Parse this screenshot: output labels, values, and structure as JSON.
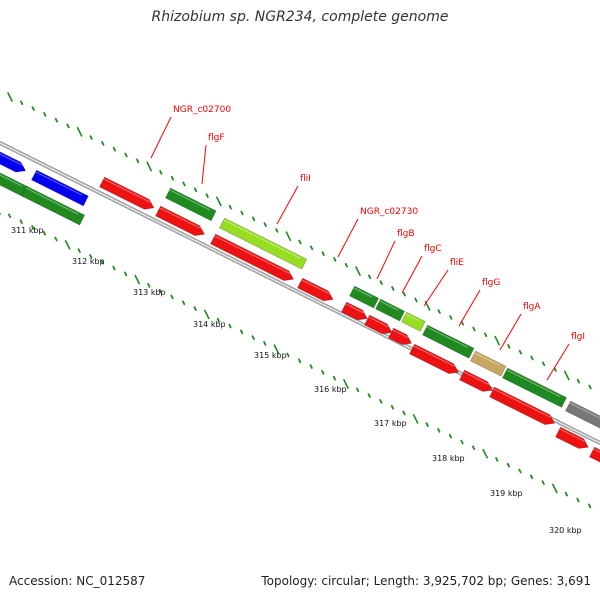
{
  "title": "Rhizobium sp. NGR234, complete genome",
  "footer": {
    "accession": "Accession: NC_012587",
    "stats": "Topology: circular; Length: 3,925,702 bp; Genes: 3,691"
  },
  "colors": {
    "red": "#ee1111",
    "green": "#1f8a1f",
    "lime": "#99dd22",
    "blue": "#0000ee",
    "tan": "#c8a860",
    "gray": "#777777",
    "label": "#ff0000",
    "tick": "#1f8a1f"
  },
  "ticks": [
    "311 kbp",
    "312 kbp",
    "313 kbp",
    "314 kbp",
    "315 kbp",
    "316 kbp",
    "317 kbp",
    "318 kbp",
    "319 kbp",
    "320 kbp"
  ],
  "gene_labels": [
    "NGR_c02700",
    "flgF",
    "fliI",
    "NGR_c02730",
    "flgB",
    "flgC",
    "fliE",
    "flgG",
    "flgA",
    "flgI"
  ]
}
